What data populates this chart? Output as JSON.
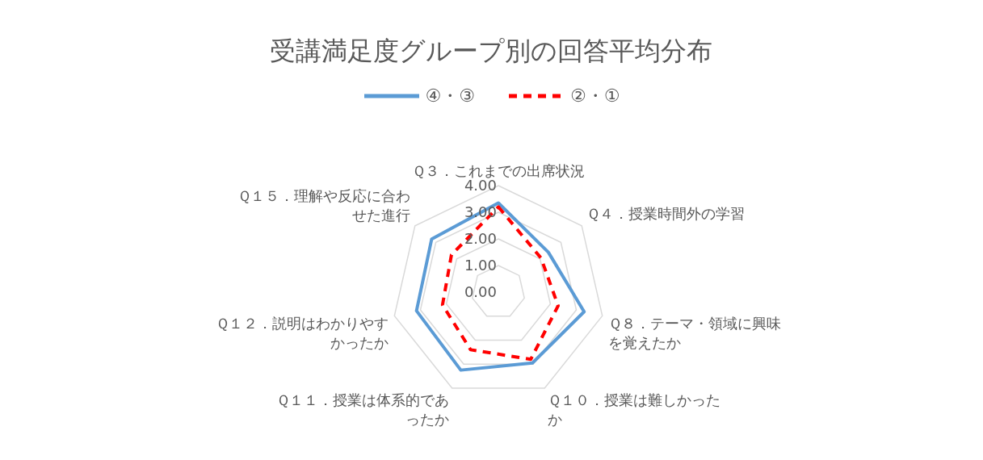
{
  "chart_data": {
    "type": "radar",
    "title": "受講満足度グループ別の回答平均分布",
    "categories": [
      "Ｑ３．これまでの出席状況",
      "Ｑ４．授業時間外の学習",
      "Ｑ８．テーマ・領域に興味を覚えたか",
      "Ｑ１０．授業は難しかったか",
      "Ｑ１１．授業は体系的であったか",
      "Ｑ１２．説明はわかりやすかったか",
      "Ｑ１５．理解や反応に合わせた進行"
    ],
    "series": [
      {
        "name": "④・③",
        "color": "#5b9bd5",
        "line_style": "solid",
        "values": [
          3.35,
          2.4,
          3.3,
          2.95,
          3.25,
          3.15,
          3.2
        ]
      },
      {
        "name": "②・①",
        "color": "#ff0000",
        "line_style": "dashed",
        "values": [
          3.2,
          2.05,
          2.3,
          2.8,
          2.4,
          2.15,
          2.25
        ]
      }
    ],
    "ylim": [
      0,
      4
    ],
    "yticks": [
      {
        "value": 0,
        "label": "0.00"
      },
      {
        "value": 1,
        "label": "1.00"
      },
      {
        "value": 2,
        "label": "2.00"
      },
      {
        "value": 3,
        "label": "3.00"
      },
      {
        "value": 4,
        "label": "4.00"
      }
    ],
    "grid": true,
    "legend": "top",
    "marker": "none"
  }
}
